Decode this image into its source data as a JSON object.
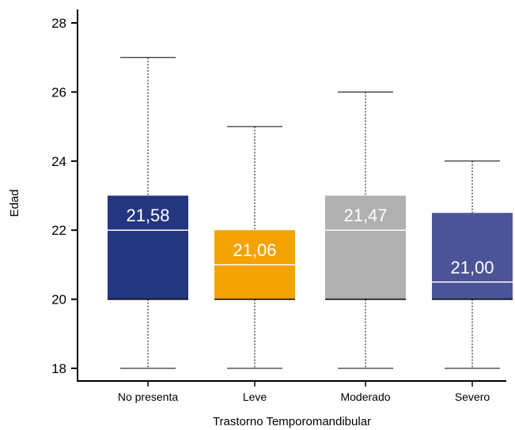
{
  "chart_data": {
    "type": "boxplot",
    "xlabel": "Trastorno Temporomandibular",
    "ylabel": "Edad",
    "ylim": [
      18,
      28
    ],
    "yticks": [
      "18",
      "20",
      "22",
      "24",
      "26",
      "28"
    ],
    "yticks_values": [
      18,
      20,
      22,
      24,
      26,
      28
    ],
    "grid": false,
    "categories": [
      "No presenta",
      "Leve",
      "Moderado",
      "Severo"
    ],
    "boxes": [
      {
        "category": "No presenta",
        "min": 18,
        "q1": 20,
        "median": 22,
        "q3": 23,
        "max": 27,
        "mean_label": "21,58",
        "color": "#24367f"
      },
      {
        "category": "Leve",
        "min": 18,
        "q1": 20,
        "median": 21,
        "q3": 22,
        "max": 25,
        "mean_label": "21,06",
        "color": "#f4a300"
      },
      {
        "category": "Moderado",
        "min": 18,
        "q1": 20,
        "median": 22,
        "q3": 23,
        "max": 26,
        "mean_label": "21,47",
        "color": "#b0b0b0"
      },
      {
        "category": "Severo",
        "min": 18,
        "q1": 20,
        "median": 20.5,
        "q3": 22.5,
        "max": 24,
        "mean_label": "21,00",
        "color": "#4a5497"
      }
    ]
  }
}
